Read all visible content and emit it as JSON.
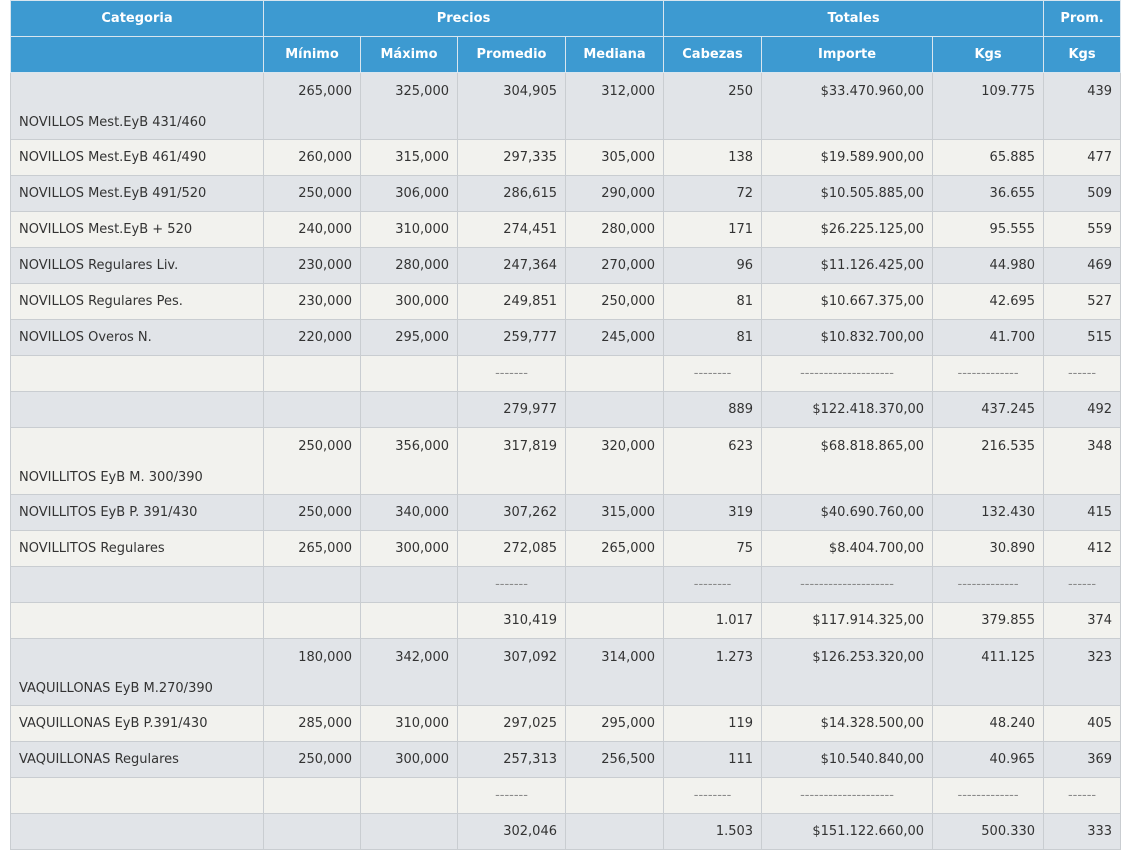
{
  "header": {
    "categoria": "Categoria",
    "precios": "Precios",
    "totales": "Totales",
    "prom": "Prom.",
    "minimo": "Mínimo",
    "maximo": "Máximo",
    "promedio": "Promedio",
    "mediana": "Mediana",
    "cabezas": "Cabezas",
    "importe": "Importe",
    "kgs": "Kgs",
    "prom_kgs": "Kgs"
  },
  "rows": [
    {
      "cat": "NOVILLOS Mest.EyB 431/460",
      "min": "265,000",
      "max": "325,000",
      "prom": "304,905",
      "med": "312,000",
      "cab": "250",
      "imp": "$33.470.960,00",
      "kgs": "109.775",
      "pk": "439"
    },
    {
      "cat": "NOVILLOS Mest.EyB 461/490",
      "min": "260,000",
      "max": "315,000",
      "prom": "297,335",
      "med": "305,000",
      "cab": "138",
      "imp": "$19.589.900,00",
      "kgs": "65.885",
      "pk": "477"
    },
    {
      "cat": "NOVILLOS Mest.EyB 491/520",
      "min": "250,000",
      "max": "306,000",
      "prom": "286,615",
      "med": "290,000",
      "cab": "72",
      "imp": "$10.505.885,00",
      "kgs": "36.655",
      "pk": "509"
    },
    {
      "cat": "NOVILLOS Mest.EyB + 520",
      "min": "240,000",
      "max": "310,000",
      "prom": "274,451",
      "med": "280,000",
      "cab": "171",
      "imp": "$26.225.125,00",
      "kgs": "95.555",
      "pk": "559"
    },
    {
      "cat": "NOVILLOS Regulares Liv.",
      "min": "230,000",
      "max": "280,000",
      "prom": "247,364",
      "med": "270,000",
      "cab": "96",
      "imp": "$11.126.425,00",
      "kgs": "44.980",
      "pk": "469"
    },
    {
      "cat": "NOVILLOS Regulares Pes.",
      "min": "230,000",
      "max": "300,000",
      "prom": "249,851",
      "med": "250,000",
      "cab": "81",
      "imp": "$10.667.375,00",
      "kgs": "42.695",
      "pk": "527"
    },
    {
      "cat": "NOVILLOS Overos N.",
      "min": "220,000",
      "max": "295,000",
      "prom": "259,777",
      "med": "245,000",
      "cab": "81",
      "imp": "$10.832.700,00",
      "kgs": "41.700",
      "pk": "515"
    },
    {
      "cat": "",
      "min": "",
      "max": "",
      "prom": "-------",
      "med": "",
      "cab": "--------",
      "imp": "--------------------",
      "kgs": "-------------",
      "pk": "------"
    },
    {
      "cat": "",
      "min": "",
      "max": "",
      "prom": "279,977",
      "med": "",
      "cab": "889",
      "imp": "$122.418.370,00",
      "kgs": "437.245",
      "pk": "492"
    },
    {
      "cat": "NOVILLITOS EyB M. 300/390",
      "min": "250,000",
      "max": "356,000",
      "prom": "317,819",
      "med": "320,000",
      "cab": "623",
      "imp": "$68.818.865,00",
      "kgs": "216.535",
      "pk": "348"
    },
    {
      "cat": "NOVILLITOS EyB P. 391/430",
      "min": "250,000",
      "max": "340,000",
      "prom": "307,262",
      "med": "315,000",
      "cab": "319",
      "imp": "$40.690.760,00",
      "kgs": "132.430",
      "pk": "415"
    },
    {
      "cat": "NOVILLITOS Regulares",
      "min": "265,000",
      "max": "300,000",
      "prom": "272,085",
      "med": "265,000",
      "cab": "75",
      "imp": "$8.404.700,00",
      "kgs": "30.890",
      "pk": "412"
    },
    {
      "cat": "",
      "min": "",
      "max": "",
      "prom": "-------",
      "med": "",
      "cab": "--------",
      "imp": "--------------------",
      "kgs": "-------------",
      "pk": "------"
    },
    {
      "cat": "",
      "min": "",
      "max": "",
      "prom": "310,419",
      "med": "",
      "cab": "1.017",
      "imp": "$117.914.325,00",
      "kgs": "379.855",
      "pk": "374"
    },
    {
      "cat": "VAQUILLONAS EyB M.270/390",
      "min": "180,000",
      "max": "342,000",
      "prom": "307,092",
      "med": "314,000",
      "cab": "1.273",
      "imp": "$126.253.320,00",
      "kgs": "411.125",
      "pk": "323"
    },
    {
      "cat": "VAQUILLONAS EyB P.391/430",
      "min": "285,000",
      "max": "310,000",
      "prom": "297,025",
      "med": "295,000",
      "cab": "119",
      "imp": "$14.328.500,00",
      "kgs": "48.240",
      "pk": "405"
    },
    {
      "cat": "VAQUILLONAS Regulares",
      "min": "250,000",
      "max": "300,000",
      "prom": "257,313",
      "med": "256,500",
      "cab": "111",
      "imp": "$10.540.840,00",
      "kgs": "40.965",
      "pk": "369"
    },
    {
      "cat": "",
      "min": "",
      "max": "",
      "prom": "-------",
      "med": "",
      "cab": "--------",
      "imp": "--------------------",
      "kgs": "-------------",
      "pk": "------"
    },
    {
      "cat": "",
      "min": "",
      "max": "",
      "prom": "302,046",
      "med": "",
      "cab": "1.503",
      "imp": "$151.122.660,00",
      "kgs": "500.330",
      "pk": "333"
    }
  ]
}
